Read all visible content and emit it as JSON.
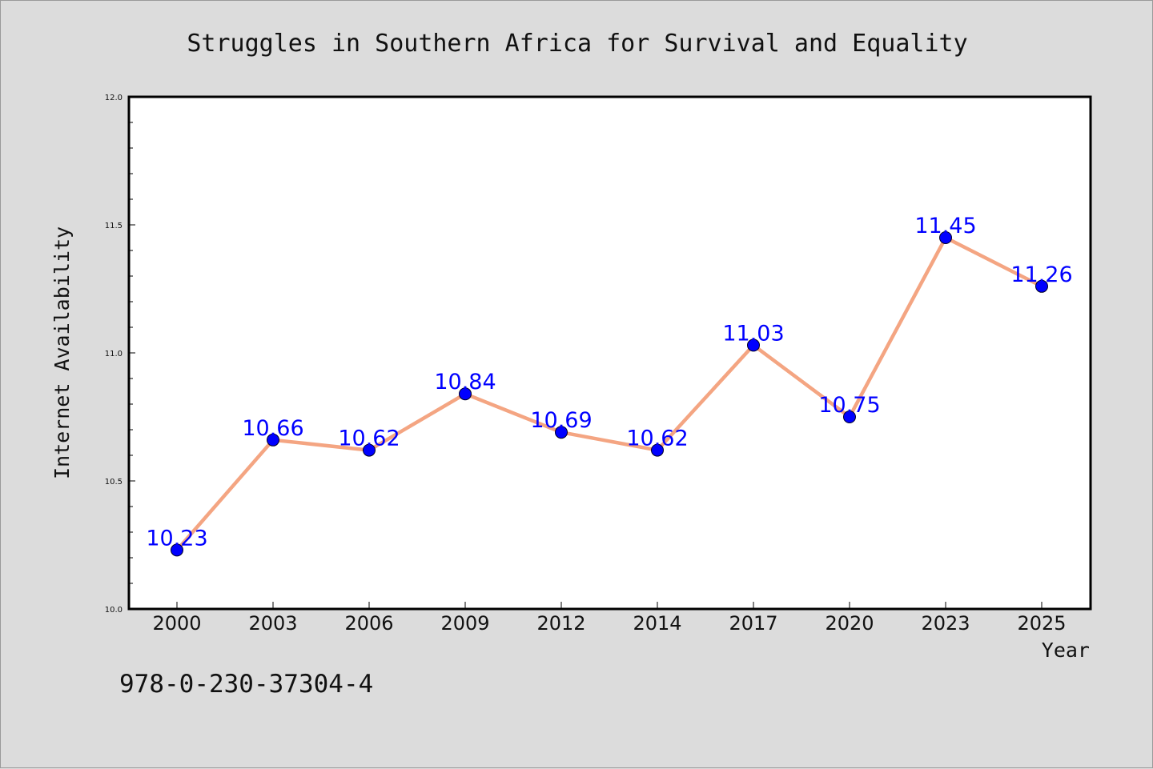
{
  "chart_data": {
    "type": "line",
    "title": "Struggles in Southern Africa for Survival and Equality",
    "xlabel": "Year",
    "ylabel": "Internet Availability",
    "categories": [
      "2000",
      "2003",
      "2006",
      "2009",
      "2012",
      "2014",
      "2017",
      "2020",
      "2023",
      "2025"
    ],
    "values": [
      10.23,
      10.66,
      10.62,
      10.84,
      10.69,
      10.62,
      11.03,
      10.75,
      11.45,
      11.26
    ],
    "data_labels": [
      "10.23",
      "10.66",
      "10.62",
      "10.84",
      "10.69",
      "10.62",
      "11.03",
      "10.75",
      "11.45",
      "11.26"
    ],
    "ylim": [
      10.0,
      12.0
    ],
    "yticks": [
      "10.0",
      "10.5",
      "11.0",
      "11.5",
      "12.0"
    ],
    "grid": false,
    "colors": {
      "line": "#f4a582",
      "marker": "#0000ff",
      "data_label": "#0000ff",
      "background": "#dcdcdc",
      "plot_area": "#ffffff"
    }
  },
  "annotation": {
    "isbn": "978-0-230-37304-4"
  }
}
